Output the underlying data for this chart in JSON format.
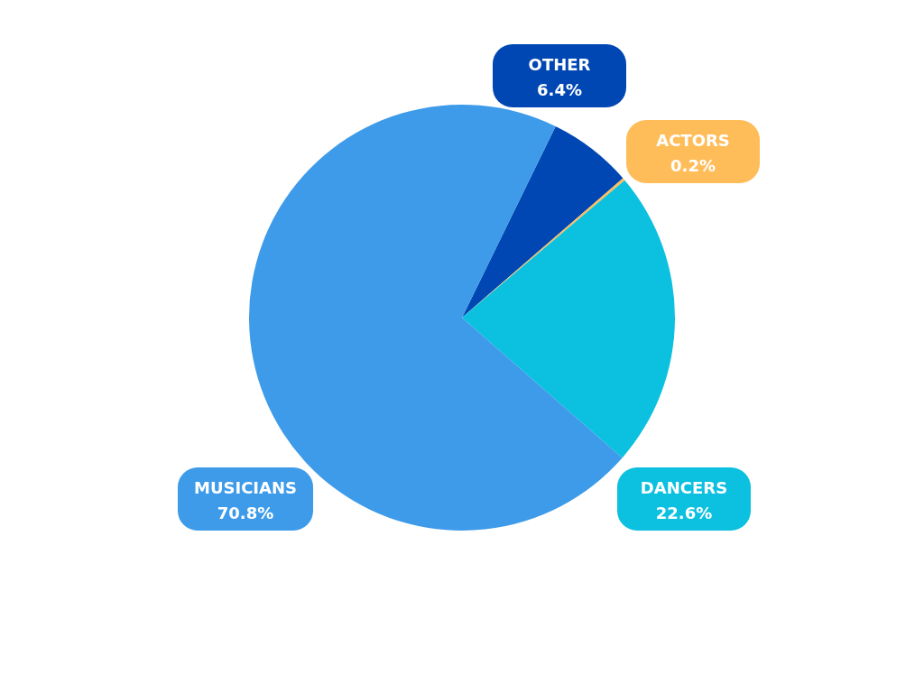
{
  "chart_data": {
    "type": "pie",
    "categories": [
      "OTHER",
      "ACTORS",
      "DANCERS",
      "MUSICIANS"
    ],
    "values": [
      6.4,
      0.2,
      22.6,
      70.8
    ],
    "colors": [
      "#0047b3",
      "#ffbd59",
      "#0cc0df",
      "#3d9be9"
    ],
    "value_labels": [
      "6.4%",
      "0.2%",
      "22.6%",
      "70.8%"
    ]
  }
}
